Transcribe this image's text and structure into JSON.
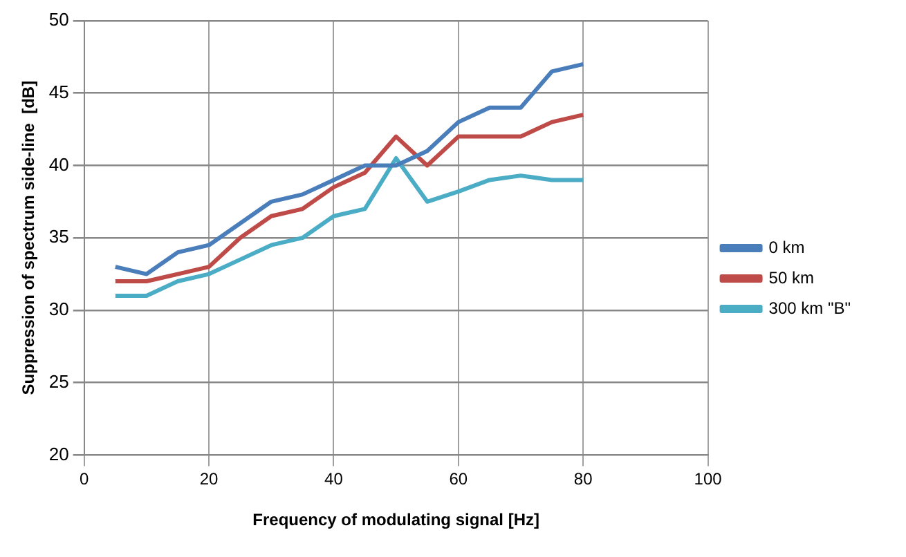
{
  "chart_data": {
    "type": "line",
    "xlabel": "Frequency of modulating signal [Hz]",
    "ylabel": "Suppression of spectrum side-line  [dB]",
    "x": [
      5,
      10,
      15,
      20,
      25,
      30,
      35,
      40,
      45,
      50,
      55,
      60,
      65,
      70,
      75,
      80
    ],
    "series": [
      {
        "name": "0 km",
        "color": "#4a7ebb",
        "values": [
          33,
          32.5,
          34,
          34.5,
          36,
          37.5,
          38,
          39,
          40,
          40,
          41,
          43,
          44,
          44,
          46.5,
          47
        ]
      },
      {
        "name": "50 km",
        "color": "#be4b48",
        "values": [
          32,
          32,
          32.5,
          33,
          35,
          36.5,
          37,
          38.5,
          39.5,
          42,
          40,
          42,
          42,
          42,
          43,
          43.5
        ]
      },
      {
        "name": "300 km \"B\"",
        "color": "#4bacc6",
        "values": [
          31,
          31,
          32,
          32.5,
          33.5,
          34.5,
          35,
          36.5,
          37,
          40.5,
          37.5,
          38.2,
          39,
          39.3,
          39,
          39
        ]
      }
    ],
    "xlim": [
      0,
      100
    ],
    "xticks": [
      0,
      20,
      40,
      60,
      80,
      100
    ],
    "ylim": [
      20,
      50
    ],
    "yticks": [
      20,
      25,
      30,
      35,
      40,
      45,
      50
    ],
    "grid": true,
    "legend": "right",
    "marker": "none",
    "line_style": "solid"
  }
}
